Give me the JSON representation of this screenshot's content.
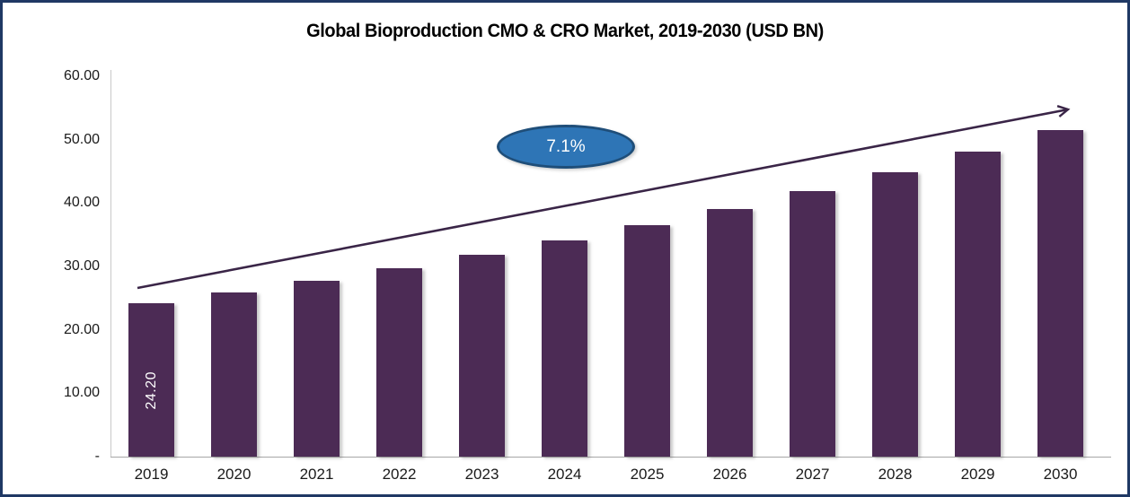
{
  "window": {
    "frame_border_color": "#1F3864",
    "background_color": "#FFFFFF"
  },
  "title": "Global Bioproduction CMO & CRO Market, 2019-2030 (USD BN)",
  "annotations": {
    "cagr_badge": {
      "label": "7.1%",
      "fill_color": "#2E75B6",
      "border_color": "#1F4E79"
    },
    "trend_arrow_color": "#3A2547"
  },
  "chart_data": {
    "type": "bar",
    "title": "Global Bioproduction CMO & CRO Market, 2019-2030 (USD BN)",
    "xlabel": "",
    "ylabel": "",
    "categories": [
      "2019",
      "2020",
      "2021",
      "2022",
      "2023",
      "2024",
      "2025",
      "2026",
      "2027",
      "2028",
      "2029",
      "2030"
    ],
    "values": [
      24.2,
      25.92,
      27.76,
      29.73,
      31.84,
      34.1,
      36.52,
      39.11,
      41.89,
      44.86,
      48.05,
      51.46
    ],
    "bar_color": "#4C2B55",
    "data_labels": [
      {
        "index": 0,
        "text": "24.20"
      }
    ],
    "ylim": [
      0,
      60
    ],
    "yticks": [
      {
        "value": 60,
        "label": "60.00"
      },
      {
        "value": 50,
        "label": "50.00"
      },
      {
        "value": 40,
        "label": "40.00"
      },
      {
        "value": 30,
        "label": "30.00"
      },
      {
        "value": 20,
        "label": "20.00"
      },
      {
        "value": 10,
        "label": "10.00"
      },
      {
        "value": 0,
        "label": "-"
      }
    ],
    "grid": false,
    "legend_position": "none",
    "annotation_text": "7.1%"
  }
}
